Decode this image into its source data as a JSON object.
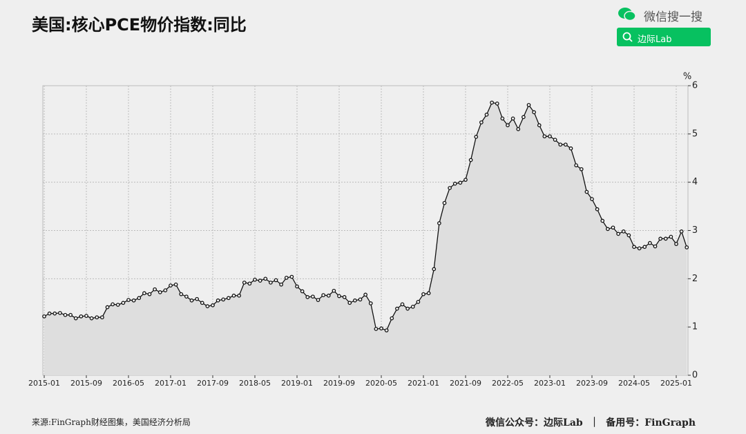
{
  "header": {
    "search_label": "微信搜一搜",
    "search_query": "边际Lab"
  },
  "chart_data": {
    "type": "line",
    "title": "美国:核心PCE物价指数:同比",
    "y_unit": "%",
    "x": [
      "2015-01",
      "2015-02",
      "2015-03",
      "2015-04",
      "2015-05",
      "2015-06",
      "2015-07",
      "2015-08",
      "2015-09",
      "2015-10",
      "2015-11",
      "2015-12",
      "2016-01",
      "2016-02",
      "2016-03",
      "2016-04",
      "2016-05",
      "2016-06",
      "2016-07",
      "2016-08",
      "2016-09",
      "2016-10",
      "2016-11",
      "2016-12",
      "2017-01",
      "2017-02",
      "2017-03",
      "2017-04",
      "2017-05",
      "2017-06",
      "2017-07",
      "2017-08",
      "2017-09",
      "2017-10",
      "2017-11",
      "2017-12",
      "2018-01",
      "2018-02",
      "2018-03",
      "2018-04",
      "2018-05",
      "2018-06",
      "2018-07",
      "2018-08",
      "2018-09",
      "2018-10",
      "2018-11",
      "2018-12",
      "2019-01",
      "2019-02",
      "2019-03",
      "2019-04",
      "2019-05",
      "2019-06",
      "2019-07",
      "2019-08",
      "2019-09",
      "2019-10",
      "2019-11",
      "2019-12",
      "2020-01",
      "2020-02",
      "2020-03",
      "2020-04",
      "2020-05",
      "2020-06",
      "2020-07",
      "2020-08",
      "2020-09",
      "2020-10",
      "2020-11",
      "2020-12",
      "2021-01",
      "2021-02",
      "2021-03",
      "2021-04",
      "2021-05",
      "2021-06",
      "2021-07",
      "2021-08",
      "2021-09",
      "2021-10",
      "2021-11",
      "2021-12",
      "2022-01",
      "2022-02",
      "2022-03",
      "2022-04",
      "2022-05",
      "2022-06",
      "2022-07",
      "2022-08",
      "2022-09",
      "2022-10",
      "2022-11",
      "2022-12",
      "2023-01",
      "2023-02",
      "2023-03",
      "2023-04",
      "2023-05",
      "2023-06",
      "2023-07",
      "2023-08",
      "2023-09",
      "2023-10",
      "2023-11",
      "2023-12",
      "2024-01",
      "2024-02",
      "2024-03",
      "2024-04",
      "2024-05",
      "2024-06",
      "2024-07",
      "2024-08",
      "2024-09",
      "2024-10",
      "2024-11",
      "2024-12",
      "2025-01",
      "2025-02",
      "2025-03"
    ],
    "values": [
      1.22,
      1.28,
      1.28,
      1.29,
      1.25,
      1.25,
      1.18,
      1.22,
      1.23,
      1.18,
      1.2,
      1.2,
      1.41,
      1.47,
      1.46,
      1.5,
      1.56,
      1.55,
      1.6,
      1.7,
      1.68,
      1.78,
      1.72,
      1.76,
      1.86,
      1.88,
      1.68,
      1.63,
      1.55,
      1.58,
      1.5,
      1.43,
      1.45,
      1.55,
      1.57,
      1.6,
      1.65,
      1.65,
      1.92,
      1.9,
      1.98,
      1.96,
      2.0,
      1.92,
      1.97,
      1.88,
      2.02,
      2.04,
      1.84,
      1.74,
      1.62,
      1.63,
      1.56,
      1.66,
      1.65,
      1.75,
      1.64,
      1.62,
      1.5,
      1.55,
      1.57,
      1.67,
      1.49,
      0.96,
      0.97,
      0.93,
      1.18,
      1.38,
      1.47,
      1.38,
      1.42,
      1.52,
      1.68,
      1.7,
      2.2,
      3.15,
      3.57,
      3.88,
      3.97,
      3.99,
      4.05,
      4.46,
      4.94,
      5.24,
      5.4,
      5.65,
      5.63,
      5.32,
      5.18,
      5.32,
      5.1,
      5.35,
      5.6,
      5.45,
      5.18,
      4.95,
      4.95,
      4.88,
      4.78,
      4.78,
      4.7,
      4.35,
      4.27,
      3.8,
      3.65,
      3.44,
      3.2,
      3.03,
      3.06,
      2.93,
      2.98,
      2.9,
      2.66,
      2.63,
      2.66,
      2.74,
      2.67,
      2.83,
      2.83,
      2.87,
      2.72,
      2.98,
      2.65
    ],
    "xticks": [
      "2015-01",
      "2015-09",
      "2016-05",
      "2017-01",
      "2017-09",
      "2018-05",
      "2019-01",
      "2019-09",
      "2020-05",
      "2021-01",
      "2021-09",
      "2022-05",
      "2023-01",
      "2023-09",
      "2024-05",
      "2025-01"
    ],
    "ylim": [
      0,
      6
    ],
    "yticks": [
      0,
      1,
      2,
      3,
      4,
      5,
      6
    ],
    "grid": true,
    "color": "#111111",
    "area_color": "#dedede"
  },
  "footer": {
    "source": "来源:FinGraph财经图集，美国经济分析局",
    "credits": "微信公众号：边际Lab  ｜  备用号：FinGraph"
  }
}
